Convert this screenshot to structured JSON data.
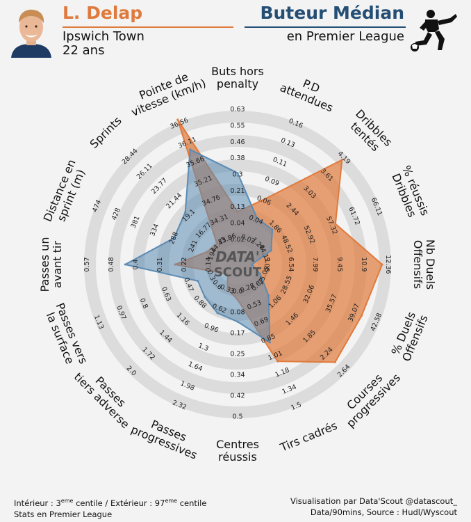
{
  "header": {
    "player_name": "L. Delap",
    "club": "Ipswich Town",
    "age": "22 ans",
    "role_title": "Buteur Médian",
    "league": "en Premier League"
  },
  "footer": {
    "range_prefix": "Intérieur : 3",
    "range_sup1": "eme",
    "range_mid": " centile / Extérieur : 97",
    "range_sup2": "eme",
    "range_suffix": " centile",
    "stats_scope": "Stats en Premier League",
    "credit": "Visualisation par Data'Scout @datascout_",
    "source": "Data/90mins, Source : Hudl/Wyscout"
  },
  "logo": {
    "line1": "DATA'",
    "line2": "SCOUT"
  },
  "colors": {
    "player": "#e07a3c",
    "average": "#5b8bb3",
    "ring": "#dcdcdc",
    "background": "#f3f3f3"
  },
  "chart_data": {
    "type": "radar",
    "axes": [
      {
        "label": "Buts hors penalty",
        "ticks": [
          "0.02",
          "0.04",
          "0.13",
          "0.21",
          "0.3",
          "0.38",
          "0.46",
          "0.55",
          "0.63"
        ]
      },
      {
        "label": "P.D attendues",
        "ticks": [
          "0.02",
          "0.04",
          "0.06",
          "0.09",
          "0.11",
          "0.13",
          "0.16"
        ]
      },
      {
        "label": "Dribbles tentés",
        "ticks": [
          "1.28",
          "1.86",
          "2.44",
          "3.03",
          "3.61",
          "4.19"
        ]
      },
      {
        "label": "% Dribbles réussis",
        "ticks": [
          "44.12",
          "48.52",
          "52.92",
          "57.32",
          "61.72",
          "66.11"
        ]
      },
      {
        "label": "Nb Duels Offensifs",
        "ticks": [
          "5.08",
          "6.54",
          "7.99",
          "9.45",
          "10.9",
          "12.36"
        ]
      },
      {
        "label": "% Duels Offensifs",
        "ticks": [
          "25.05",
          "28.55",
          "32.06",
          "35.57",
          "39.07",
          "42.58"
        ]
      },
      {
        "label": "Courses progressives",
        "ticks": [
          "0.67",
          "1.06",
          "1.46",
          "1.85",
          "2.24",
          "2.64"
        ]
      },
      {
        "label": "Tirs cadrés",
        "ticks": [
          "0.28",
          "0.53",
          "0.69",
          "0.85",
          "1.01",
          "1.18",
          "1.34",
          "1.5"
        ]
      },
      {
        "label": "Centres réussis",
        "ticks": [
          "0.0",
          "0.08",
          "0.17",
          "0.25",
          "0.34",
          "0.42",
          "0.5"
        ]
      },
      {
        "label": "Passes progressives",
        "ticks": [
          "0.33",
          "0.62",
          "0.96",
          "1.3",
          "1.64",
          "1.98",
          "2.32"
        ]
      },
      {
        "label": "Passes tiers adverse",
        "ticks": [
          "0.6",
          "0.88",
          "1.16",
          "1.44",
          "1.72",
          "2.0"
        ]
      },
      {
        "label": "Passes vers la surface",
        "ticks": [
          "0.3",
          "0.47",
          "0.63",
          "0.8",
          "0.97",
          "1.13"
        ]
      },
      {
        "label": "Passes avant un tir",
        "ticks": [
          "0.14",
          "0.22",
          "0.31",
          "0.4",
          "0.48",
          "0.57"
        ]
      },
      {
        "label": "Distance en sprint (m)",
        "ticks": [
          "194",
          "241",
          "288",
          "334",
          "381",
          "428",
          "474"
        ]
      },
      {
        "label": "Sprints",
        "ticks": [
          "14.43",
          "16.77",
          "19.1",
          "21.44",
          "23.77",
          "26.11",
          "28.44"
        ]
      },
      {
        "label": "Pointe de vitesse (km/h)",
        "ticks": [
          "33.86",
          "34.31",
          "34.76",
          "35.21",
          "35.66",
          "36.11",
          "36.56"
        ]
      }
    ],
    "series": [
      {
        "name": "L. Delap",
        "values": [
          0.14,
          0.07,
          3.95,
          58.0,
          11.6,
          39.5,
          2.34,
          1.07,
          0.07,
          0.48,
          0.52,
          0.34,
          0.28,
          231,
          15.9,
          36.5
        ]
      },
      {
        "name": "Moyenne Buteur Médian",
        "values": [
          0.32,
          0.05,
          1.98,
          47.5,
          5.1,
          26.3,
          1.07,
          0.91,
          0.15,
          0.82,
          0.91,
          0.47,
          0.43,
          300,
          20.2,
          35.9
        ]
      }
    ]
  }
}
